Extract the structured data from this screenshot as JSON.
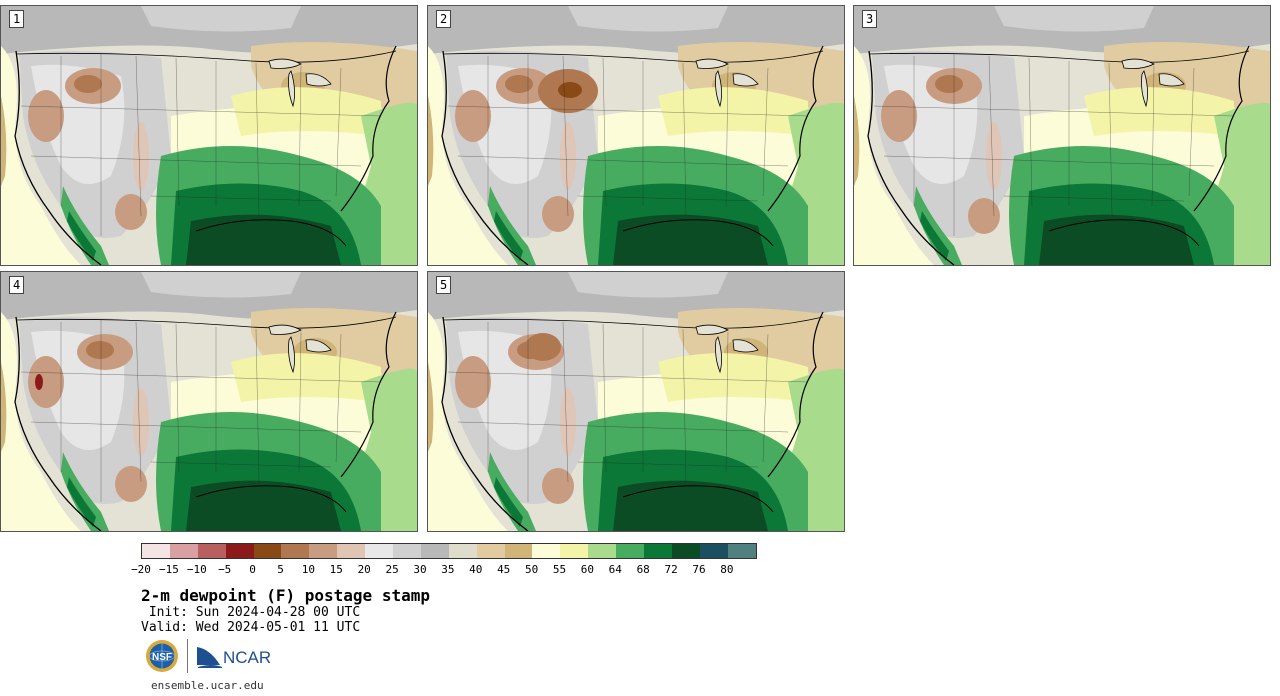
{
  "figure": {
    "title": "2-m dewpoint (F) postage stamp",
    "init": " Init: Sun 2024-04-28 00 UTC",
    "valid": "Valid: Wed 2024-05-01 11 UTC",
    "website": "ensemble.ucar.edu"
  },
  "panels": [
    {
      "label": "1",
      "variant": 1
    },
    {
      "label": "2",
      "variant": 2
    },
    {
      "label": "3",
      "variant": 3
    },
    {
      "label": "4",
      "variant": 4
    },
    {
      "label": "5",
      "variant": 5
    }
  ],
  "colorbar": {
    "colors": [
      "#f4e4e4",
      "#d8a0a0",
      "#b86060",
      "#8c1a1a",
      "#8a4a16",
      "#b07850",
      "#c89c80",
      "#e0c4b4",
      "#e8e8e8",
      "#d0d0d0",
      "#b8b8b8",
      "#e0dccc",
      "#e0cca0",
      "#d0b478",
      "#fcfcd8",
      "#f4f4a8",
      "#a8dc8c",
      "#48ac60",
      "#0c7838",
      "#0c4c24",
      "#1c5060",
      "#508080"
    ],
    "ticks": [
      "−20",
      "−15",
      "−10",
      "−5",
      "0",
      "5",
      "10",
      "15",
      "20",
      "25",
      "30",
      "35",
      "40",
      "45",
      "50",
      "55",
      "60",
      "64",
      "68",
      "72",
      "76",
      "80"
    ]
  },
  "logos": {
    "nsf": "NSF",
    "ncar": "NCAR"
  },
  "icons": {
    "nsf": "nsf-globe-icon",
    "ncar": "ncar-wave-icon"
  }
}
